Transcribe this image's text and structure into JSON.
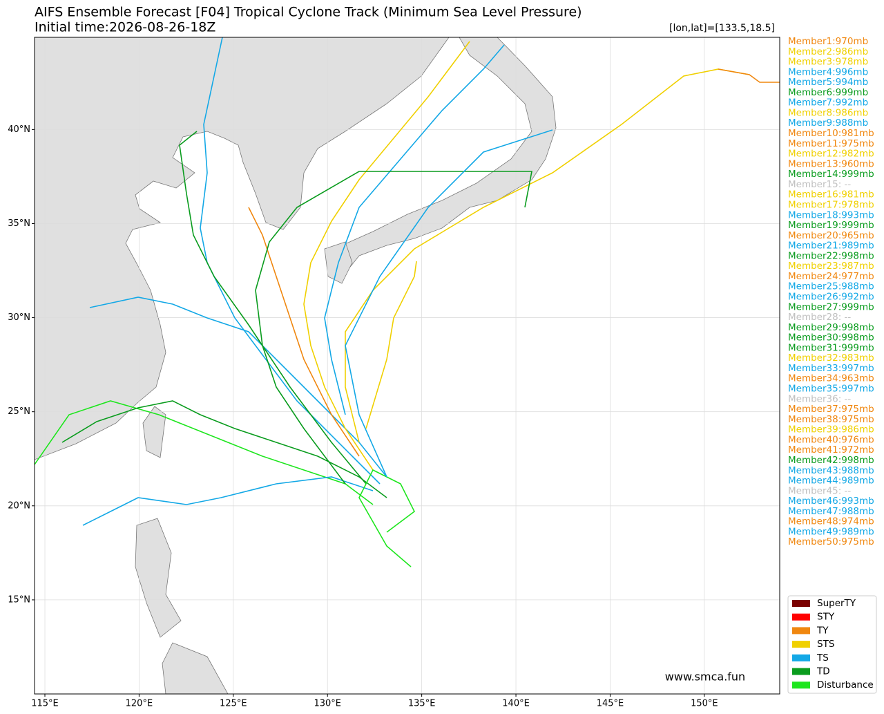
{
  "chart_data": {
    "type": "map",
    "title": "AIFS Ensemble Forecast [F04] Tropical Cyclone Track (Minimum Sea Level Pressure)",
    "subtitle": "Initial time:2026-08-26-18Z",
    "coord_note": "[lon,lat]=[133.5,18.5]",
    "xlim": [
      114.45,
      154
    ],
    "ylim": [
      10,
      44.9
    ],
    "xticks": [
      {
        "value": 115,
        "label": "115°E"
      },
      {
        "value": 120,
        "label": "120°E"
      },
      {
        "value": 125,
        "label": "125°E"
      },
      {
        "value": 130,
        "label": "130°E"
      },
      {
        "value": 135,
        "label": "135°E"
      },
      {
        "value": 140,
        "label": "140°E"
      },
      {
        "value": 145,
        "label": "145°E"
      },
      {
        "value": 150,
        "label": "150°E"
      }
    ],
    "yticks": [
      {
        "value": 15,
        "label": "15°N"
      },
      {
        "value": 20,
        "label": "20°N"
      },
      {
        "value": 25,
        "label": "25°N"
      },
      {
        "value": 30,
        "label": "30°N"
      },
      {
        "value": 35,
        "label": "35°N"
      },
      {
        "value": 40,
        "label": "40°N"
      }
    ],
    "grid": true,
    "members": [
      {
        "label": "Member1:970mb",
        "color": "#f0870f"
      },
      {
        "label": "Member2:986mb",
        "color": "#f0d000"
      },
      {
        "label": "Member3:978mb",
        "color": "#f0d000"
      },
      {
        "label": "Member4:996mb",
        "color": "#13a8e6"
      },
      {
        "label": "Member5:994mb",
        "color": "#13a8e6"
      },
      {
        "label": "Member6:999mb",
        "color": "#0a9c1e"
      },
      {
        "label": "Member7:992mb",
        "color": "#13a8e6"
      },
      {
        "label": "Member8:986mb",
        "color": "#f0d000"
      },
      {
        "label": "Member9:988mb",
        "color": "#13a8e6"
      },
      {
        "label": "Member10:981mb",
        "color": "#f0870f"
      },
      {
        "label": "Member11:975mb",
        "color": "#f0870f"
      },
      {
        "label": "Member12:982mb",
        "color": "#f0d000"
      },
      {
        "label": "Member13:960mb",
        "color": "#f0870f"
      },
      {
        "label": "Member14:999mb",
        "color": "#0a9c1e"
      },
      {
        "label": "Member15: --",
        "color": "#c0c0c0"
      },
      {
        "label": "Member16:981mb",
        "color": "#f0d000"
      },
      {
        "label": "Member17:978mb",
        "color": "#f0d000"
      },
      {
        "label": "Member18:993mb",
        "color": "#13a8e6"
      },
      {
        "label": "Member19:999mb",
        "color": "#0a9c1e"
      },
      {
        "label": "Member20:965mb",
        "color": "#f0870f"
      },
      {
        "label": "Member21:989mb",
        "color": "#13a8e6"
      },
      {
        "label": "Member22:998mb",
        "color": "#0a9c1e"
      },
      {
        "label": "Member23:987mb",
        "color": "#f0d000"
      },
      {
        "label": "Member24:977mb",
        "color": "#f0870f"
      },
      {
        "label": "Member25:988mb",
        "color": "#13a8e6"
      },
      {
        "label": "Member26:992mb",
        "color": "#13a8e6"
      },
      {
        "label": "Member27:999mb",
        "color": "#0a9c1e"
      },
      {
        "label": "Member28: --",
        "color": "#c0c0c0"
      },
      {
        "label": "Member29:998mb",
        "color": "#0a9c1e"
      },
      {
        "label": "Member30:998mb",
        "color": "#0a9c1e"
      },
      {
        "label": "Member31:999mb",
        "color": "#0a9c1e"
      },
      {
        "label": "Member32:983mb",
        "color": "#f0d000"
      },
      {
        "label": "Member33:997mb",
        "color": "#13a8e6"
      },
      {
        "label": "Member34:963mb",
        "color": "#f0870f"
      },
      {
        "label": "Member35:997mb",
        "color": "#13a8e6"
      },
      {
        "label": "Member36: --",
        "color": "#c0c0c0"
      },
      {
        "label": "Member37:975mb",
        "color": "#f0870f"
      },
      {
        "label": "Member38:975mb",
        "color": "#f0870f"
      },
      {
        "label": "Member39:986mb",
        "color": "#f0d000"
      },
      {
        "label": "Member40:976mb",
        "color": "#f0870f"
      },
      {
        "label": "Member41:972mb",
        "color": "#f0870f"
      },
      {
        "label": "Member42:998mb",
        "color": "#0a9c1e"
      },
      {
        "label": "Member43:988mb",
        "color": "#13a8e6"
      },
      {
        "label": "Member44:989mb",
        "color": "#13a8e6"
      },
      {
        "label": "Member45: --",
        "color": "#c0c0c0"
      },
      {
        "label": "Member46:993mb",
        "color": "#13a8e6"
      },
      {
        "label": "Member47:988mb",
        "color": "#13a8e6"
      },
      {
        "label": "Member48:974mb",
        "color": "#f0870f"
      },
      {
        "label": "Member49:989mb",
        "color": "#13a8e6"
      },
      {
        "label": "Member50:975mb",
        "color": "#f0870f"
      }
    ],
    "legend": [
      {
        "label": "SuperTY",
        "color": "#7a0000"
      },
      {
        "label": "STY",
        "color": "#ff0000"
      },
      {
        "label": "TY",
        "color": "#f0870f"
      },
      {
        "label": "STS",
        "color": "#f0d000"
      },
      {
        "label": "TS",
        "color": "#13a8e6"
      },
      {
        "label": "TD",
        "color": "#0a9c1e"
      },
      {
        "label": "Disturbance",
        "color": "#1ee61e"
      }
    ],
    "watermark": "www.smca.fun"
  }
}
